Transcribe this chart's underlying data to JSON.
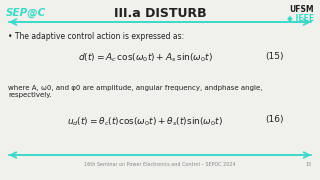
{
  "title": "III.a DISTURB",
  "bg_color": "#f0f0ec",
  "title_color": "#222222",
  "accent_color": "#3dd9c8",
  "bullet_text": "The adaptive control action is expressed as:",
  "eq1_latex": "$d(t) = A_c\\,\\cos(\\omega_0 t) + A_s\\,\\sin(\\omega_0 t)$",
  "eq1_number": "(15)",
  "desc_text": "where A, ω0, and φ0 are amplitude, angular frequency, andphase angle,\nrespectively.",
  "eq2_latex": "$u_d(t) = \\theta_c(t)\\cos(\\omega_0 t) + \\theta_s(t)\\sin(\\omega_0 t)$",
  "eq2_number": "(16)",
  "footer_text": "16th Seminar on Power Electronics and Control – SEPOC 2024",
  "footer_page": "15",
  "sep_logo_color": "#3dd9c8",
  "ufsm_text": "UFSM",
  "ieee_text": "IEEE"
}
